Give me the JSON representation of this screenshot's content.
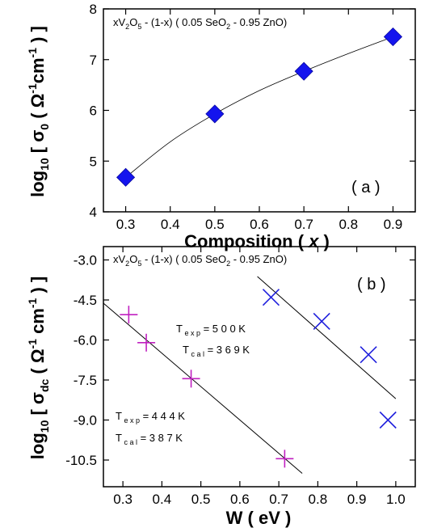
{
  "chart_data": [
    {
      "id": "a",
      "type": "scatter",
      "panel_label": "( a )",
      "annotation": "xV2O5 - (1-x) ( 0.05 SeO2 - 0.95 ZnO)",
      "ylabel": "log10 [ σ0 ( Ω-1 cm-1 ) ]",
      "xlabel": "Composition ( x )",
      "xlim": [
        0.25,
        0.95
      ],
      "ylim": [
        4,
        8
      ],
      "xticks": [
        "0.3",
        "0.4",
        "0.5",
        "0.6",
        "0.7",
        "0.8",
        "0.9"
      ],
      "yticks": [
        "4",
        "5",
        "6",
        "7",
        "8"
      ],
      "grid": false,
      "marker": "diamond",
      "marker_color": "#1414ee",
      "series": [
        {
          "x": [
            0.3,
            0.5,
            0.7,
            0.9
          ],
          "y": [
            4.68,
            5.93,
            6.77,
            7.45
          ]
        }
      ],
      "fit_curve": {
        "x": [
          0.3,
          0.4,
          0.5,
          0.6,
          0.7,
          0.8,
          0.9
        ],
        "y": [
          4.68,
          5.38,
          5.93,
          6.39,
          6.77,
          7.12,
          7.45
        ]
      }
    },
    {
      "id": "b",
      "type": "scatter",
      "panel_label": "( b )",
      "annotation": "xV2O5 - (1-x) ( 0.05 SeO2 - 0.95 ZnO)",
      "ylabel": "log10 [ σdc ( Ω-1 cm-1 ) ]",
      "xlabel": "W ( eV )",
      "xlim": [
        0.25,
        1.05
      ],
      "ylim": [
        -11.5,
        -2.5
      ],
      "xticks": [
        "0.3",
        "0.4",
        "0.5",
        "0.6",
        "0.7",
        "0.8",
        "0.9",
        "1.0"
      ],
      "yticks": [
        "-3.0",
        "-4.5",
        "-6.0",
        "-7.5",
        "-9.0",
        "-10.5"
      ],
      "grid": false,
      "series": [
        {
          "marker": "plus",
          "color": "#c020c0",
          "x": [
            0.315,
            0.36,
            0.475,
            0.715
          ],
          "y": [
            -5.05,
            -6.1,
            -7.45,
            -10.45
          ],
          "fit_line": {
            "x": [
              0.25,
              0.76
            ],
            "y": [
              -4.62,
              -11.0
            ]
          },
          "t_exp": "T exp = 4 4 4 K",
          "t_cal": "T cal = 3 8 7 K"
        },
        {
          "marker": "cross",
          "color": "#2020dd",
          "x": [
            0.68,
            0.81,
            0.93,
            0.98
          ],
          "y": [
            -4.4,
            -5.3,
            -6.55,
            -9.0
          ],
          "fit_line": {
            "x": [
              0.645,
              1.0
            ],
            "y": [
              -3.62,
              -8.2
            ]
          },
          "t_exp": "T exp = 5 0 0 K",
          "t_cal": "T cal = 3 6 9 K"
        }
      ]
    }
  ]
}
